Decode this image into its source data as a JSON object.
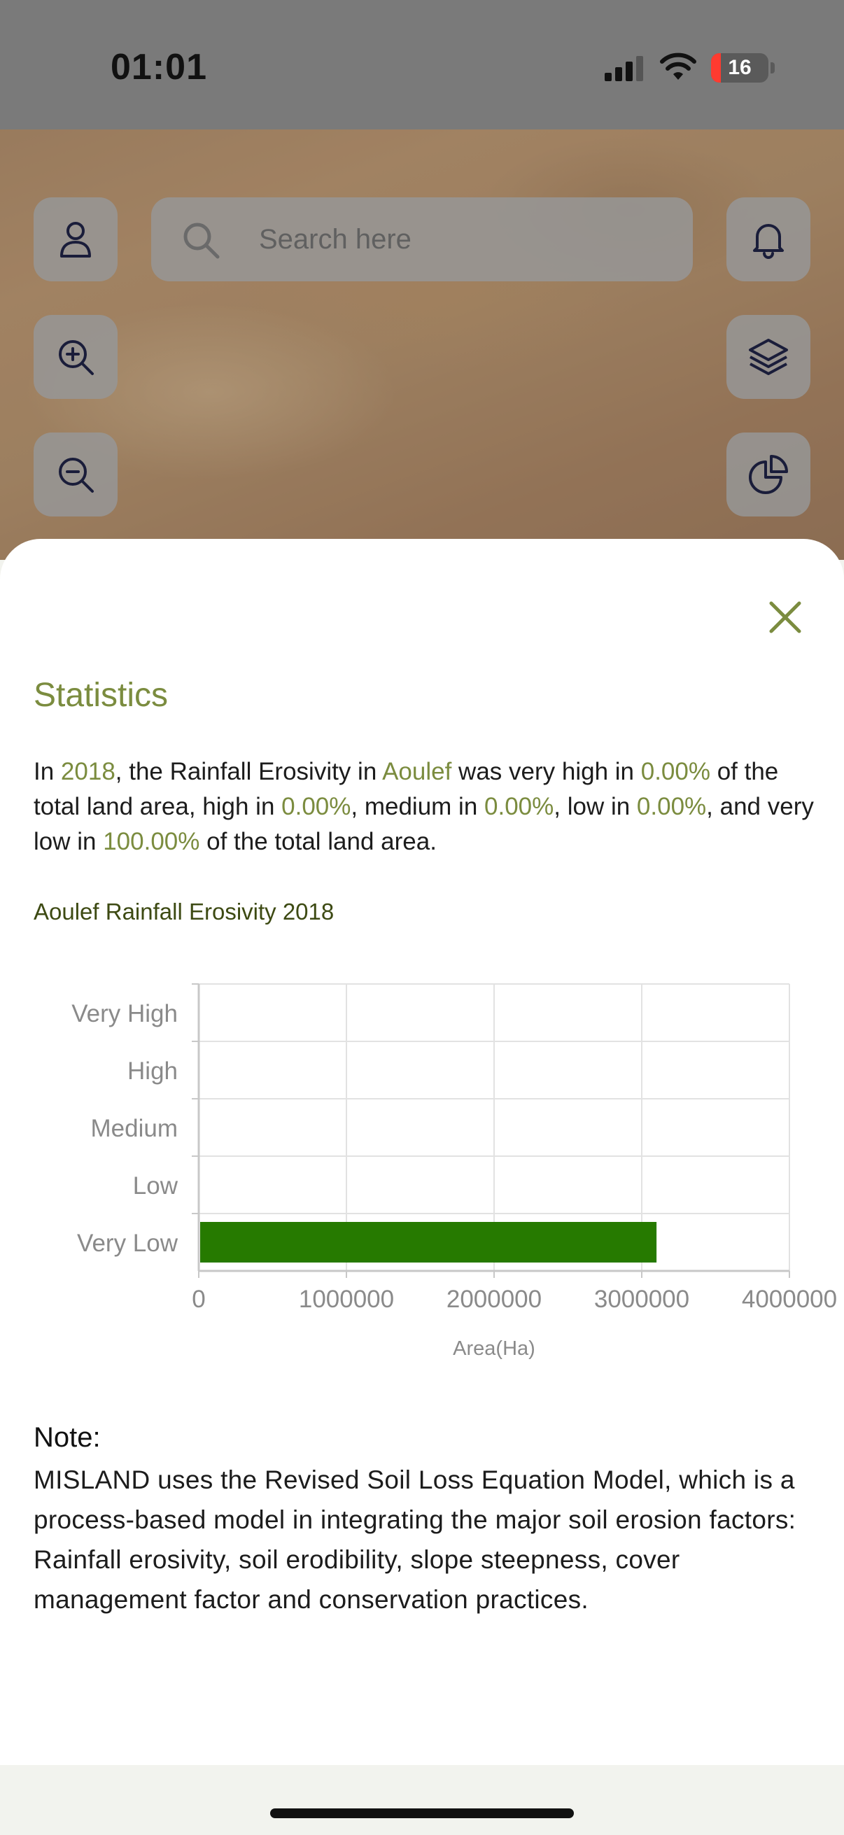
{
  "status_bar": {
    "time": "01:01",
    "battery": "16",
    "battery_color": "#ff3b30"
  },
  "map_controls": {
    "search_placeholder": "Search here",
    "icons": [
      "user-icon",
      "zoom-in-icon",
      "zoom-out-icon",
      "bell-icon",
      "layers-icon",
      "pie-chart-icon"
    ]
  },
  "sheet": {
    "title": "Statistics",
    "summary": {
      "t1": "In ",
      "year": "2018",
      "t2": ", the Rainfall Erosivity in ",
      "place": "Aoulef",
      "t3": " was very high in ",
      "very_high": "0.00%",
      "t4": " of the total land area, high in ",
      "high": "0.00%",
      "t5": ", medium in ",
      "medium": "0.00%",
      "t6": ", low in ",
      "low": "0.00%",
      "t7": ", and very low in ",
      "very_low": "100.00%",
      "t8": " of the total land area."
    },
    "chart_title": "Aoulef Rainfall Erosivity 2018",
    "note_heading": "Note:",
    "note_body": "MISLAND uses the Revised Soil Loss Equation Model, which is a process-based model in integrating the major soil erosion factors: Rainfall erosivity, soil erodibility, slope steepness, cover management factor and conservation practices."
  },
  "chart_data": {
    "type": "bar",
    "orientation": "horizontal",
    "title": "Aoulef Rainfall Erosivity 2018",
    "categories": [
      "Very High",
      "High",
      "Medium",
      "Low",
      "Very Low"
    ],
    "values": [
      0,
      0,
      0,
      0,
      3100000
    ],
    "xlabel": "Area(Ha)",
    "ylabel": "",
    "xlim": [
      0,
      4000000
    ],
    "xticks": [
      "0",
      "1000000",
      "2000000",
      "3000000",
      "4000000"
    ],
    "grid": true,
    "bar_color": "#267a00"
  },
  "colors": {
    "accent": "#7b8c3f",
    "chart_title": "#3d4a13"
  }
}
